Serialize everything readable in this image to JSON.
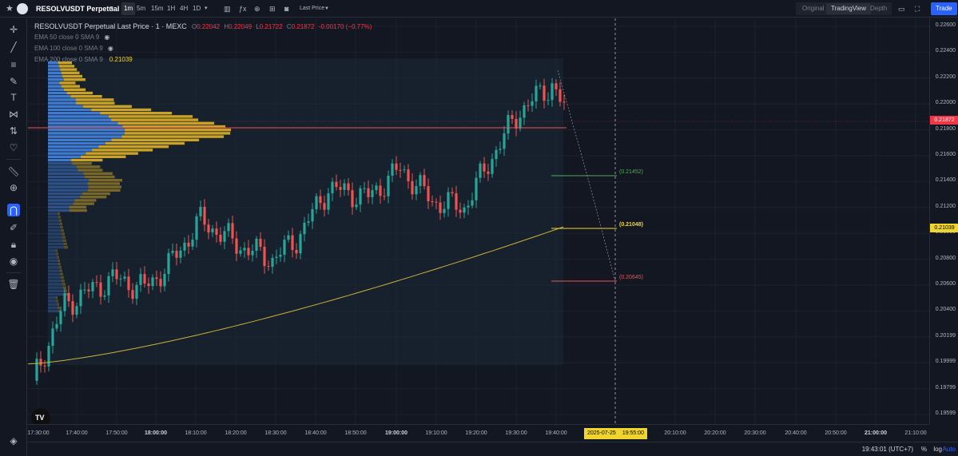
{
  "topbar": {
    "symbol": "RESOLVUSDT Perpetual",
    "timeframes": [
      "1m",
      "5m",
      "15m",
      "1H",
      "4H",
      "1D"
    ],
    "active_timeframe": "1m",
    "price_source": "Last Price",
    "view_options": [
      "Original",
      "TradingView",
      "Depth"
    ],
    "active_view": "TradingView",
    "trade_label": "Trade"
  },
  "legend": {
    "title": "RESOLVUSDT Perpetual Last Price · 1 · MEXC",
    "open_label": "O",
    "open": "0.22042",
    "high_label": "H",
    "high": "0.22049",
    "low_label": "L",
    "low": "0.21722",
    "close_label": "C",
    "close": "0.21872",
    "change": "-0.00170 (−0.77%)",
    "ema1": "EMA 50 close 0 SMA 9",
    "ema2": "EMA 100 close 0 SMA 9",
    "ema3": "EMA 200 close 0 SMA 9",
    "ema3_value": "0.21039"
  },
  "price_axis": {
    "labels": [
      "0.22600",
      "0.22400",
      "0.22200",
      "0.22000",
      "0.21800",
      "0.21600",
      "0.21400",
      "0.21200",
      "0.21000",
      "0.20800",
      "0.20600",
      "0.20400",
      "0.20199",
      "0.19999",
      "0.19799",
      "0.19599"
    ],
    "current_price": "0.21872",
    "ema_price": "0.21039"
  },
  "time_axis": {
    "labels": [
      "17:30:00",
      "17:40:00",
      "17:50:00",
      "18:00:00",
      "18:10:00",
      "18:20:00",
      "18:30:00",
      "18:40:00",
      "18:50:00",
      "19:00:00",
      "19:10:00",
      "19:20:00",
      "19:30:00",
      "19:40:00",
      "20:10:00",
      "20:20:00",
      "20:30:00",
      "20:40:00",
      "20:50:00",
      "21:00:00",
      "21:10:00"
    ],
    "bold_labels": [
      "18:00:00",
      "19:00:00",
      "21:00:00"
    ],
    "cursor_date": "2025-07-25",
    "cursor_time": "19:55:00"
  },
  "drawings": {
    "target_green": "(0.21452)",
    "target_yellow": "(0.21048)",
    "target_red": "(0.20645)"
  },
  "bottom": {
    "clock": "19:43:01 (UTC+7)",
    "percent": "%",
    "log": "log",
    "auto": "Auto"
  },
  "colors": {
    "up": "#26a69a",
    "down": "#ef5350",
    "ema": "#c9b437",
    "accent": "#2962ff",
    "vp_blue": "#3f7ad1",
    "vp_gold": "#c9a227"
  },
  "icons": [
    "star-icon",
    "avatar-icon",
    "dropdown-chevron-icon",
    "candles-icon",
    "indicators-icon",
    "alert-icon",
    "layout-icon",
    "camera-icon",
    "fullscreen-icon",
    "crosshair-icon",
    "trend-line-icon",
    "horizontal-lines-icon",
    "brush-icon",
    "text-icon",
    "pattern-icon",
    "forecast-icon",
    "heart-icon",
    "ruler-icon",
    "zoom-icon",
    "magnet-icon",
    "lock-drawing-icon",
    "lock-icon",
    "eye-icon",
    "trash-icon",
    "layers-icon",
    "tradingview-logo-icon"
  ]
}
